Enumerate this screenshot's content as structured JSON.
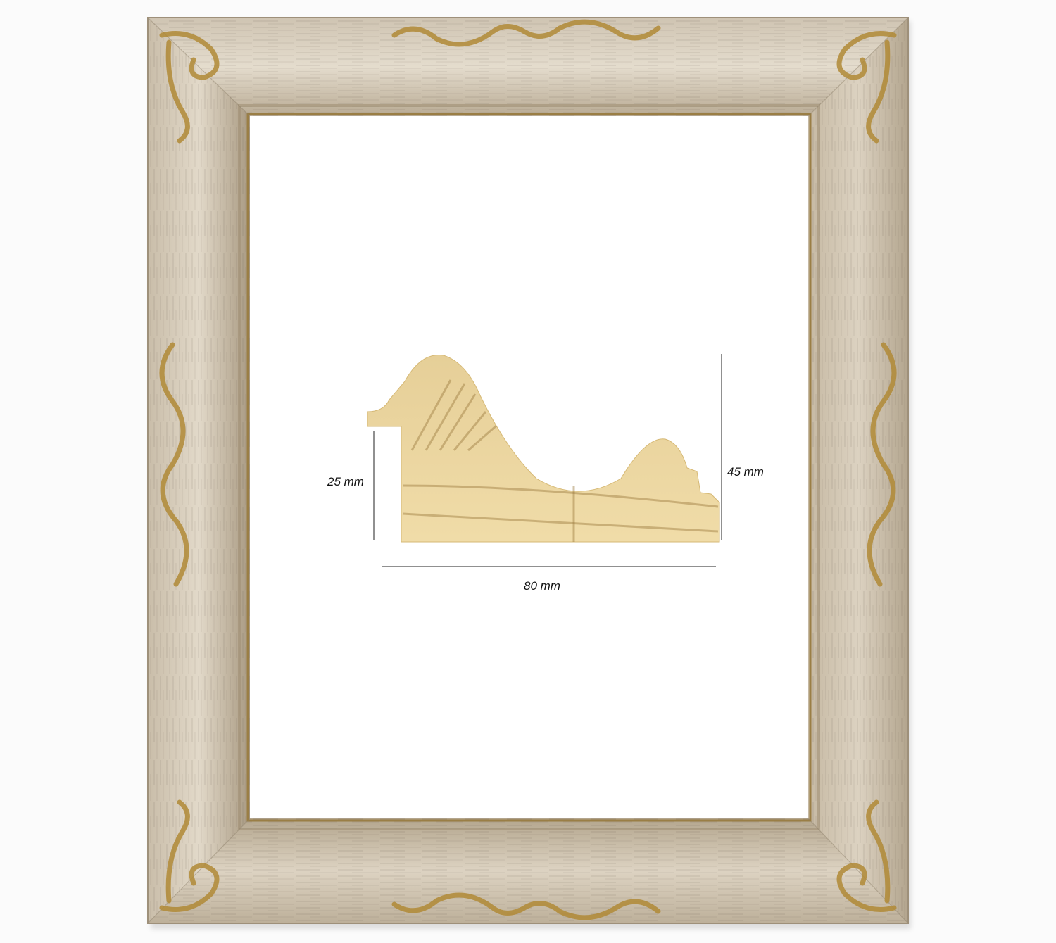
{
  "product": {
    "frame_finish_color": "#d8cdbc",
    "ornament_color": "#b8913a",
    "profile_wood_color": "#e8cf95"
  },
  "dimensions": {
    "rebate_height": "25 mm",
    "total_height": "45 mm",
    "width": "80 mm"
  }
}
